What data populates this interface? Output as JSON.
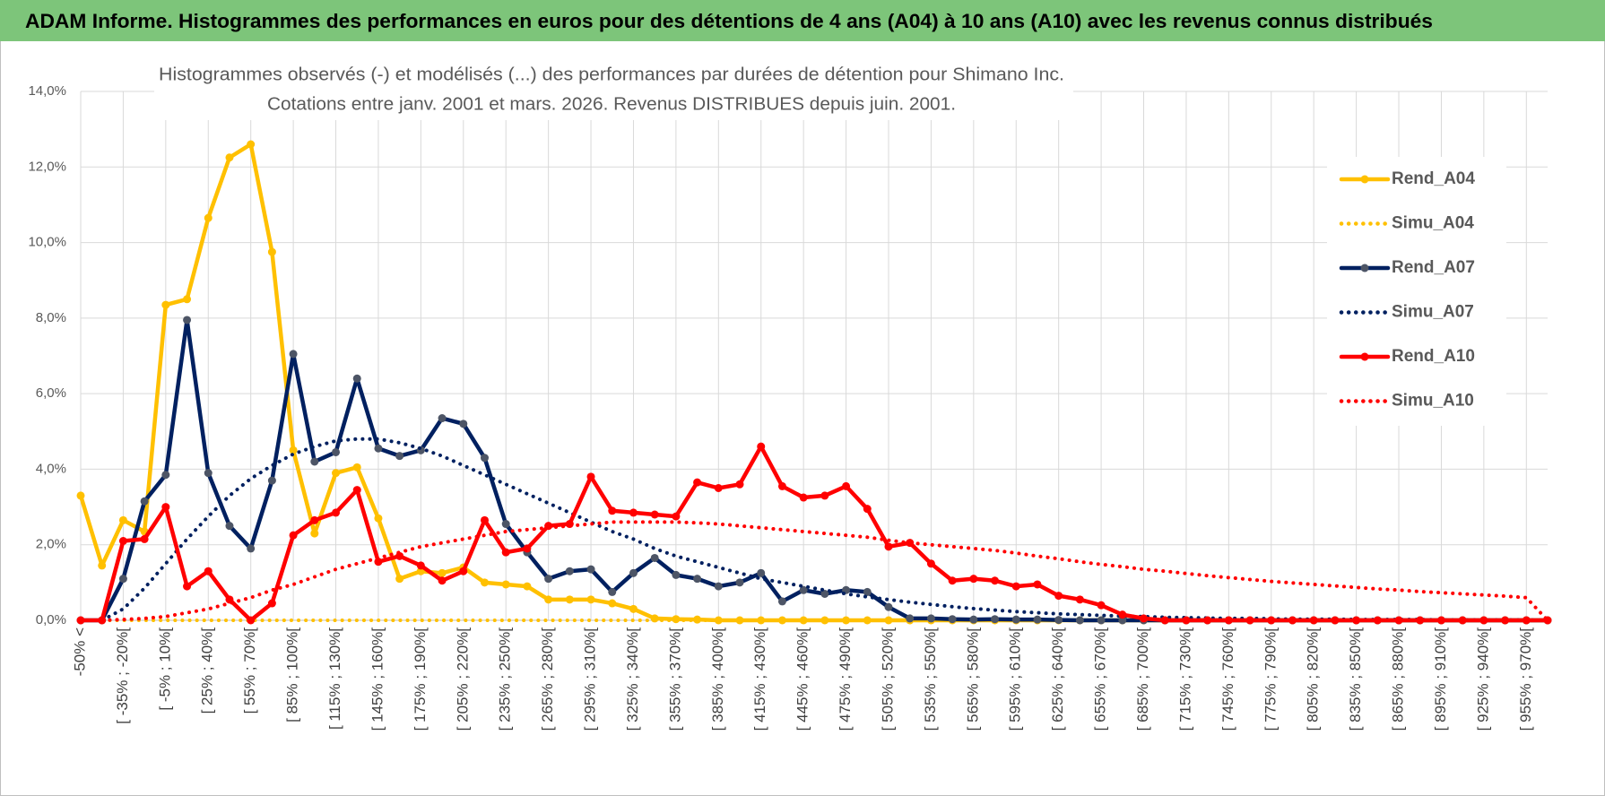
{
  "header": {
    "title": "ADAM Informe. Histogrammes des performances en euros pour des détentions de 4 ans (A04) à 10 ans (A10) avec les revenus connus distribués"
  },
  "chart_data": {
    "type": "line",
    "title": "Histogrammes observés (-) et modélisés (...) des performances par durées de détention pour Shimano Inc.",
    "subtitle": "Cotations entre janv. 2001 et mars. 2026. Revenus DISTRIBUES depuis juin. 2001.",
    "categories": [
      "-50% <",
      null,
      "[ -35% ; -20%[",
      null,
      "[ -5% ; 10%[",
      null,
      "[ 25% ; 40%[",
      null,
      "[ 55% ; 70%[",
      null,
      "[ 85% ; 100%[",
      null,
      "[ 115% ; 130%[",
      null,
      "[ 145% ; 160%[",
      null,
      "[ 175% ; 190%[",
      null,
      "[ 205% ; 220%[",
      null,
      "[ 235% ; 250%[",
      null,
      "[ 265% ; 280%[",
      null,
      "[ 295% ; 310%[",
      null,
      "[ 325% ; 340%[",
      null,
      "[ 355% ; 370%[",
      null,
      "[ 385% ; 400%[",
      null,
      "[ 415% ; 430%[",
      null,
      "[ 445% ; 460%[",
      null,
      "[ 475% ; 490%[",
      null,
      "[ 505% ; 520%[",
      null,
      "[ 535% ; 550%[",
      null,
      "[ 565% ; 580%[",
      null,
      "[ 595% ; 610%[",
      null,
      "[ 625% ; 640%[",
      null,
      "[ 655% ; 670%[",
      null,
      "[ 685% ; 700%[",
      null,
      "[ 715% ; 730%[",
      null,
      "[ 745% ; 760%[",
      null,
      "[ 775% ; 790%[",
      null,
      "[ 805% ; 820%[",
      null,
      "[ 835% ; 850%[",
      null,
      "[ 865% ; 880%[",
      null,
      "[ 895% ; 910%[",
      null,
      "[ 925% ; 940%[",
      null,
      "[ 955% ; 970%[",
      null
    ],
    "series": [
      {
        "name": "Rend_A04",
        "color": "#FFC000",
        "style": "solid",
        "marker_color": "#FFC000",
        "values": [
          3.3,
          1.45,
          2.65,
          2.35,
          8.35,
          8.5,
          10.65,
          12.25,
          12.6,
          9.75,
          4.5,
          2.3,
          3.9,
          4.05,
          2.7,
          1.1,
          1.3,
          1.25,
          1.4,
          1.0,
          0.95,
          0.9,
          0.55,
          0.55,
          0.55,
          0.45,
          0.3,
          0.05,
          0.03,
          0.02,
          0,
          0,
          0,
          0,
          0,
          0,
          0,
          0,
          0,
          0,
          0,
          0,
          0,
          0,
          0,
          0,
          0,
          0,
          0,
          0,
          0,
          0,
          0,
          0,
          0,
          0,
          0,
          0,
          0,
          0,
          0,
          0,
          0,
          0,
          0,
          0,
          0,
          0,
          0,
          0
        ]
      },
      {
        "name": "Simu_A04",
        "color": "#FFC000",
        "style": "dotted",
        "values": [
          0,
          0,
          0,
          0,
          0,
          0,
          0,
          0,
          0,
          0,
          0,
          0,
          0,
          0,
          0,
          0,
          0,
          0,
          0,
          0,
          0,
          0,
          0,
          0,
          0,
          0,
          0,
          0,
          0,
          0,
          0,
          0,
          0,
          0,
          0,
          0,
          0,
          0,
          0,
          0,
          0,
          0,
          0,
          0,
          0,
          0,
          0,
          0,
          0,
          0,
          0,
          0,
          0,
          0,
          0,
          0,
          0,
          0,
          0,
          0,
          0,
          0,
          0,
          0,
          0,
          0,
          0,
          0,
          0,
          0
        ]
      },
      {
        "name": "Rend_A07",
        "color": "#002060",
        "style": "solid",
        "marker_color": "#4D5566",
        "values": [
          0,
          0,
          1.1,
          3.15,
          3.85,
          7.95,
          3.9,
          2.5,
          1.9,
          3.7,
          7.05,
          4.2,
          4.45,
          6.4,
          4.55,
          4.35,
          4.5,
          5.35,
          5.2,
          4.3,
          2.55,
          1.8,
          1.1,
          1.3,
          1.35,
          0.75,
          1.25,
          1.65,
          1.2,
          1.1,
          0.9,
          1.0,
          1.25,
          0.5,
          0.8,
          0.7,
          0.8,
          0.75,
          0.35,
          0.05,
          0.05,
          0.03,
          0.02,
          0.03,
          0.02,
          0.02,
          0.01,
          0,
          0,
          0,
          0,
          0,
          0,
          0,
          0,
          0,
          0,
          0,
          0,
          0,
          0,
          0,
          0,
          0,
          0,
          0,
          0,
          0,
          0,
          0
        ]
      },
      {
        "name": "Simu_A07",
        "color": "#002060",
        "style": "dotted",
        "values": [
          0,
          0,
          0.3,
          0.85,
          1.5,
          2.15,
          2.75,
          3.3,
          3.75,
          4.1,
          4.4,
          4.6,
          4.75,
          4.8,
          4.8,
          4.7,
          4.55,
          4.35,
          4.1,
          3.85,
          3.6,
          3.35,
          3.1,
          2.85,
          2.6,
          2.35,
          2.15,
          1.9,
          1.7,
          1.55,
          1.4,
          1.25,
          1.1,
          1.0,
          0.9,
          0.8,
          0.7,
          0.62,
          0.55,
          0.48,
          0.42,
          0.36,
          0.31,
          0.27,
          0.23,
          0.2,
          0.17,
          0.15,
          0.13,
          0.11,
          0.1,
          0.08,
          0.07,
          0.06,
          0.05,
          0.05,
          0.04,
          0.03,
          0.03,
          0.03,
          0.02,
          0.02,
          0.02,
          0.02,
          0.01,
          0.01,
          0.01,
          0.01,
          0.01,
          0
        ]
      },
      {
        "name": "Rend_A10",
        "color": "#FF0000",
        "style": "solid",
        "marker_color": "#FF0000",
        "values": [
          0,
          0,
          2.1,
          2.15,
          3.0,
          0.9,
          1.3,
          0.55,
          0,
          0.45,
          2.25,
          2.65,
          2.85,
          3.45,
          1.55,
          1.7,
          1.45,
          1.05,
          1.3,
          2.65,
          1.8,
          1.9,
          2.5,
          2.55,
          3.8,
          2.9,
          2.85,
          2.8,
          2.75,
          3.65,
          3.5,
          3.6,
          4.6,
          3.55,
          3.25,
          3.3,
          3.55,
          2.95,
          1.95,
          2.05,
          1.5,
          1.05,
          1.1,
          1.05,
          0.9,
          0.95,
          0.65,
          0.55,
          0.4,
          0.15,
          0.05,
          0,
          0,
          0,
          0,
          0,
          0,
          0,
          0,
          0,
          0,
          0,
          0,
          0,
          0,
          0,
          0,
          0,
          0,
          0
        ]
      },
      {
        "name": "Simu_A10",
        "color": "#FF0000",
        "style": "dotted",
        "values": [
          0,
          0,
          0.02,
          0.05,
          0.1,
          0.2,
          0.3,
          0.45,
          0.6,
          0.8,
          0.95,
          1.15,
          1.35,
          1.5,
          1.65,
          1.8,
          1.95,
          2.05,
          2.15,
          2.25,
          2.35,
          2.4,
          2.45,
          2.5,
          2.55,
          2.6,
          2.6,
          2.6,
          2.6,
          2.58,
          2.55,
          2.5,
          2.45,
          2.4,
          2.35,
          2.3,
          2.25,
          2.2,
          2.12,
          2.05,
          2.0,
          1.95,
          1.9,
          1.85,
          1.78,
          1.7,
          1.63,
          1.55,
          1.48,
          1.42,
          1.35,
          1.3,
          1.24,
          1.18,
          1.13,
          1.08,
          1.03,
          0.99,
          0.95,
          0.91,
          0.87,
          0.83,
          0.8,
          0.76,
          0.73,
          0.7,
          0.67,
          0.64,
          0.6,
          0
        ]
      }
    ],
    "ylim": [
      0,
      14
    ],
    "yticks": [
      {
        "value": 0,
        "label": "0,0%"
      },
      {
        "value": 2,
        "label": "2,0%"
      },
      {
        "value": 4,
        "label": "4,0%"
      },
      {
        "value": 6,
        "label": "6,0%"
      },
      {
        "value": 8,
        "label": "8,0%"
      },
      {
        "value": 10,
        "label": "10,0%"
      },
      {
        "value": 12,
        "label": "12,0%"
      },
      {
        "value": 14,
        "label": "14,0%"
      }
    ],
    "grid": true,
    "legend": "right"
  }
}
